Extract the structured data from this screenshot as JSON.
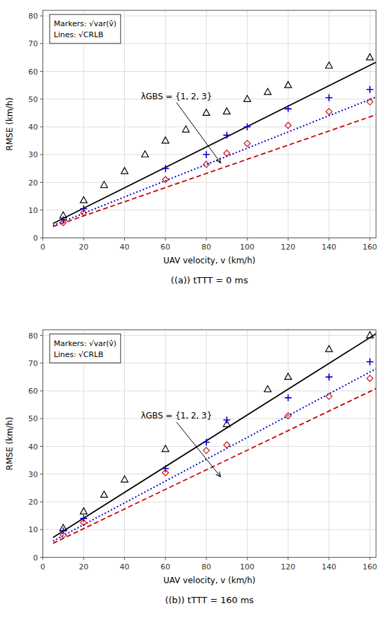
{
  "chart_data": [
    {
      "type": "scatter",
      "title": "((a)) tTTT = 0 ms",
      "x_label": "UAV velocity, v (km/h)",
      "y_label": "RMSE (km/h)",
      "xlim": [
        0,
        163
      ],
      "ylim": [
        0,
        82
      ],
      "xticks": [
        0,
        20,
        40,
        60,
        80,
        100,
        120,
        140,
        160
      ],
      "yticks": [
        0,
        10,
        20,
        30,
        40,
        50,
        60,
        70,
        80
      ],
      "grid": true,
      "text_box": [
        "Markers: √var(v̂)",
        "Lines: √CRLB"
      ],
      "annotations": [
        {
          "text": "λGBS = {1, 2, 3}",
          "x": 48,
          "y": 51,
          "arrow_x": 87,
          "arrow_y": 27
        }
      ],
      "series": [
        {
          "type": "line",
          "color": "#000000",
          "line_style": "solid",
          "x": [
            5,
            163
          ],
          "values": [
            5.14,
            63.284
          ]
        },
        {
          "type": "line",
          "color": "#0000cc",
          "line_style": "dotted",
          "x": [
            5,
            163
          ],
          "values": [
            4.465,
            50.759
          ]
        },
        {
          "type": "line",
          "color": "#cc0000",
          "line_style": "dashed",
          "x": [
            5,
            163
          ],
          "values": [
            4.075,
            44.365
          ]
        },
        {
          "type": "scatter",
          "color": "#000000",
          "marker": "triangle",
          "x": [
            10,
            20,
            30,
            40,
            50,
            60,
            70,
            80,
            90,
            100,
            110,
            120,
            130,
            140,
            150,
            160
          ],
          "values": [
            8.0,
            13.5,
            19.0,
            24.0,
            30.0,
            35.0,
            39.0,
            45.0,
            45.5,
            50.0,
            52.5,
            55.0,
            null,
            62.0,
            null,
            65.0
          ]
        },
        {
          "type": "scatter",
          "color": "#0000cc",
          "marker": "plus",
          "x": [
            10,
            20,
            30,
            40,
            50,
            60,
            70,
            80,
            90,
            100,
            110,
            120,
            130,
            140,
            150,
            160
          ],
          "values": [
            6.5,
            10.5,
            null,
            null,
            null,
            25.0,
            null,
            30.0,
            37.0,
            40.0,
            null,
            46.5,
            null,
            50.5,
            null,
            53.5
          ]
        },
        {
          "type": "scatter",
          "color": "#cc0000",
          "marker": "diamond",
          "x": [
            10,
            20,
            30,
            40,
            50,
            60,
            70,
            80,
            90,
            100,
            110,
            120,
            130,
            140,
            150,
            160
          ],
          "values": [
            5.5,
            9.0,
            null,
            null,
            null,
            21.0,
            null,
            26.5,
            30.5,
            34.0,
            null,
            40.5,
            null,
            45.5,
            null,
            49.0
          ]
        }
      ]
    },
    {
      "type": "scatter",
      "title": "((b)) tTTT = 160 ms",
      "x_label": "UAV velocity, v (km/h)",
      "y_label": "RMSE (km/h)",
      "xlim": [
        0,
        163
      ],
      "ylim": [
        0,
        82
      ],
      "xticks": [
        0,
        20,
        40,
        60,
        80,
        100,
        120,
        140,
        160
      ],
      "yticks": [
        0,
        10,
        20,
        30,
        40,
        50,
        60,
        70,
        80
      ],
      "grid": true,
      "text_box": [
        "Markers: √var(v̂)",
        "Lines: √CRLB"
      ],
      "annotations": [
        {
          "text": "λGBS = {1, 2, 3}",
          "x": 48,
          "y": 51,
          "arrow_x": 87,
          "arrow_y": 29
        }
      ],
      "series": [
        {
          "type": "line",
          "color": "#000000",
          "line_style": "solid",
          "x": [
            5,
            163
          ],
          "values": [
            7.125,
            80.595
          ]
        },
        {
          "type": "line",
          "color": "#0000cc",
          "line_style": "dotted",
          "x": [
            5,
            163
          ],
          "values": [
            5.865,
            67.959
          ]
        },
        {
          "type": "line",
          "color": "#cc0000",
          "line_style": "dashed",
          "x": [
            5,
            163
          ],
          "values": [
            5.065,
            60.839
          ]
        },
        {
          "type": "scatter",
          "color": "#000000",
          "marker": "triangle",
          "x": [
            10,
            20,
            30,
            40,
            50,
            60,
            70,
            80,
            90,
            100,
            110,
            120,
            130,
            140,
            150,
            160
          ],
          "values": [
            10.5,
            16.5,
            22.5,
            28.0,
            null,
            39.0,
            null,
            null,
            48.0,
            null,
            60.5,
            65.0,
            null,
            75.0,
            null,
            80.0
          ]
        },
        {
          "type": "scatter",
          "color": "#0000cc",
          "marker": "plus",
          "x": [
            10,
            20,
            30,
            40,
            50,
            60,
            70,
            80,
            90,
            100,
            110,
            120,
            130,
            140,
            150,
            160
          ],
          "values": [
            9.5,
            14.0,
            null,
            null,
            null,
            32.0,
            null,
            41.5,
            49.5,
            null,
            null,
            57.5,
            null,
            65.0,
            null,
            70.5
          ]
        },
        {
          "type": "scatter",
          "color": "#cc0000",
          "marker": "diamond",
          "x": [
            10,
            20,
            30,
            40,
            50,
            60,
            70,
            80,
            90,
            100,
            110,
            120,
            130,
            140,
            150,
            160
          ],
          "values": [
            8.0,
            12.5,
            null,
            null,
            null,
            30.5,
            null,
            38.5,
            40.5,
            null,
            null,
            51.0,
            null,
            58.0,
            null,
            64.5
          ]
        }
      ]
    }
  ]
}
